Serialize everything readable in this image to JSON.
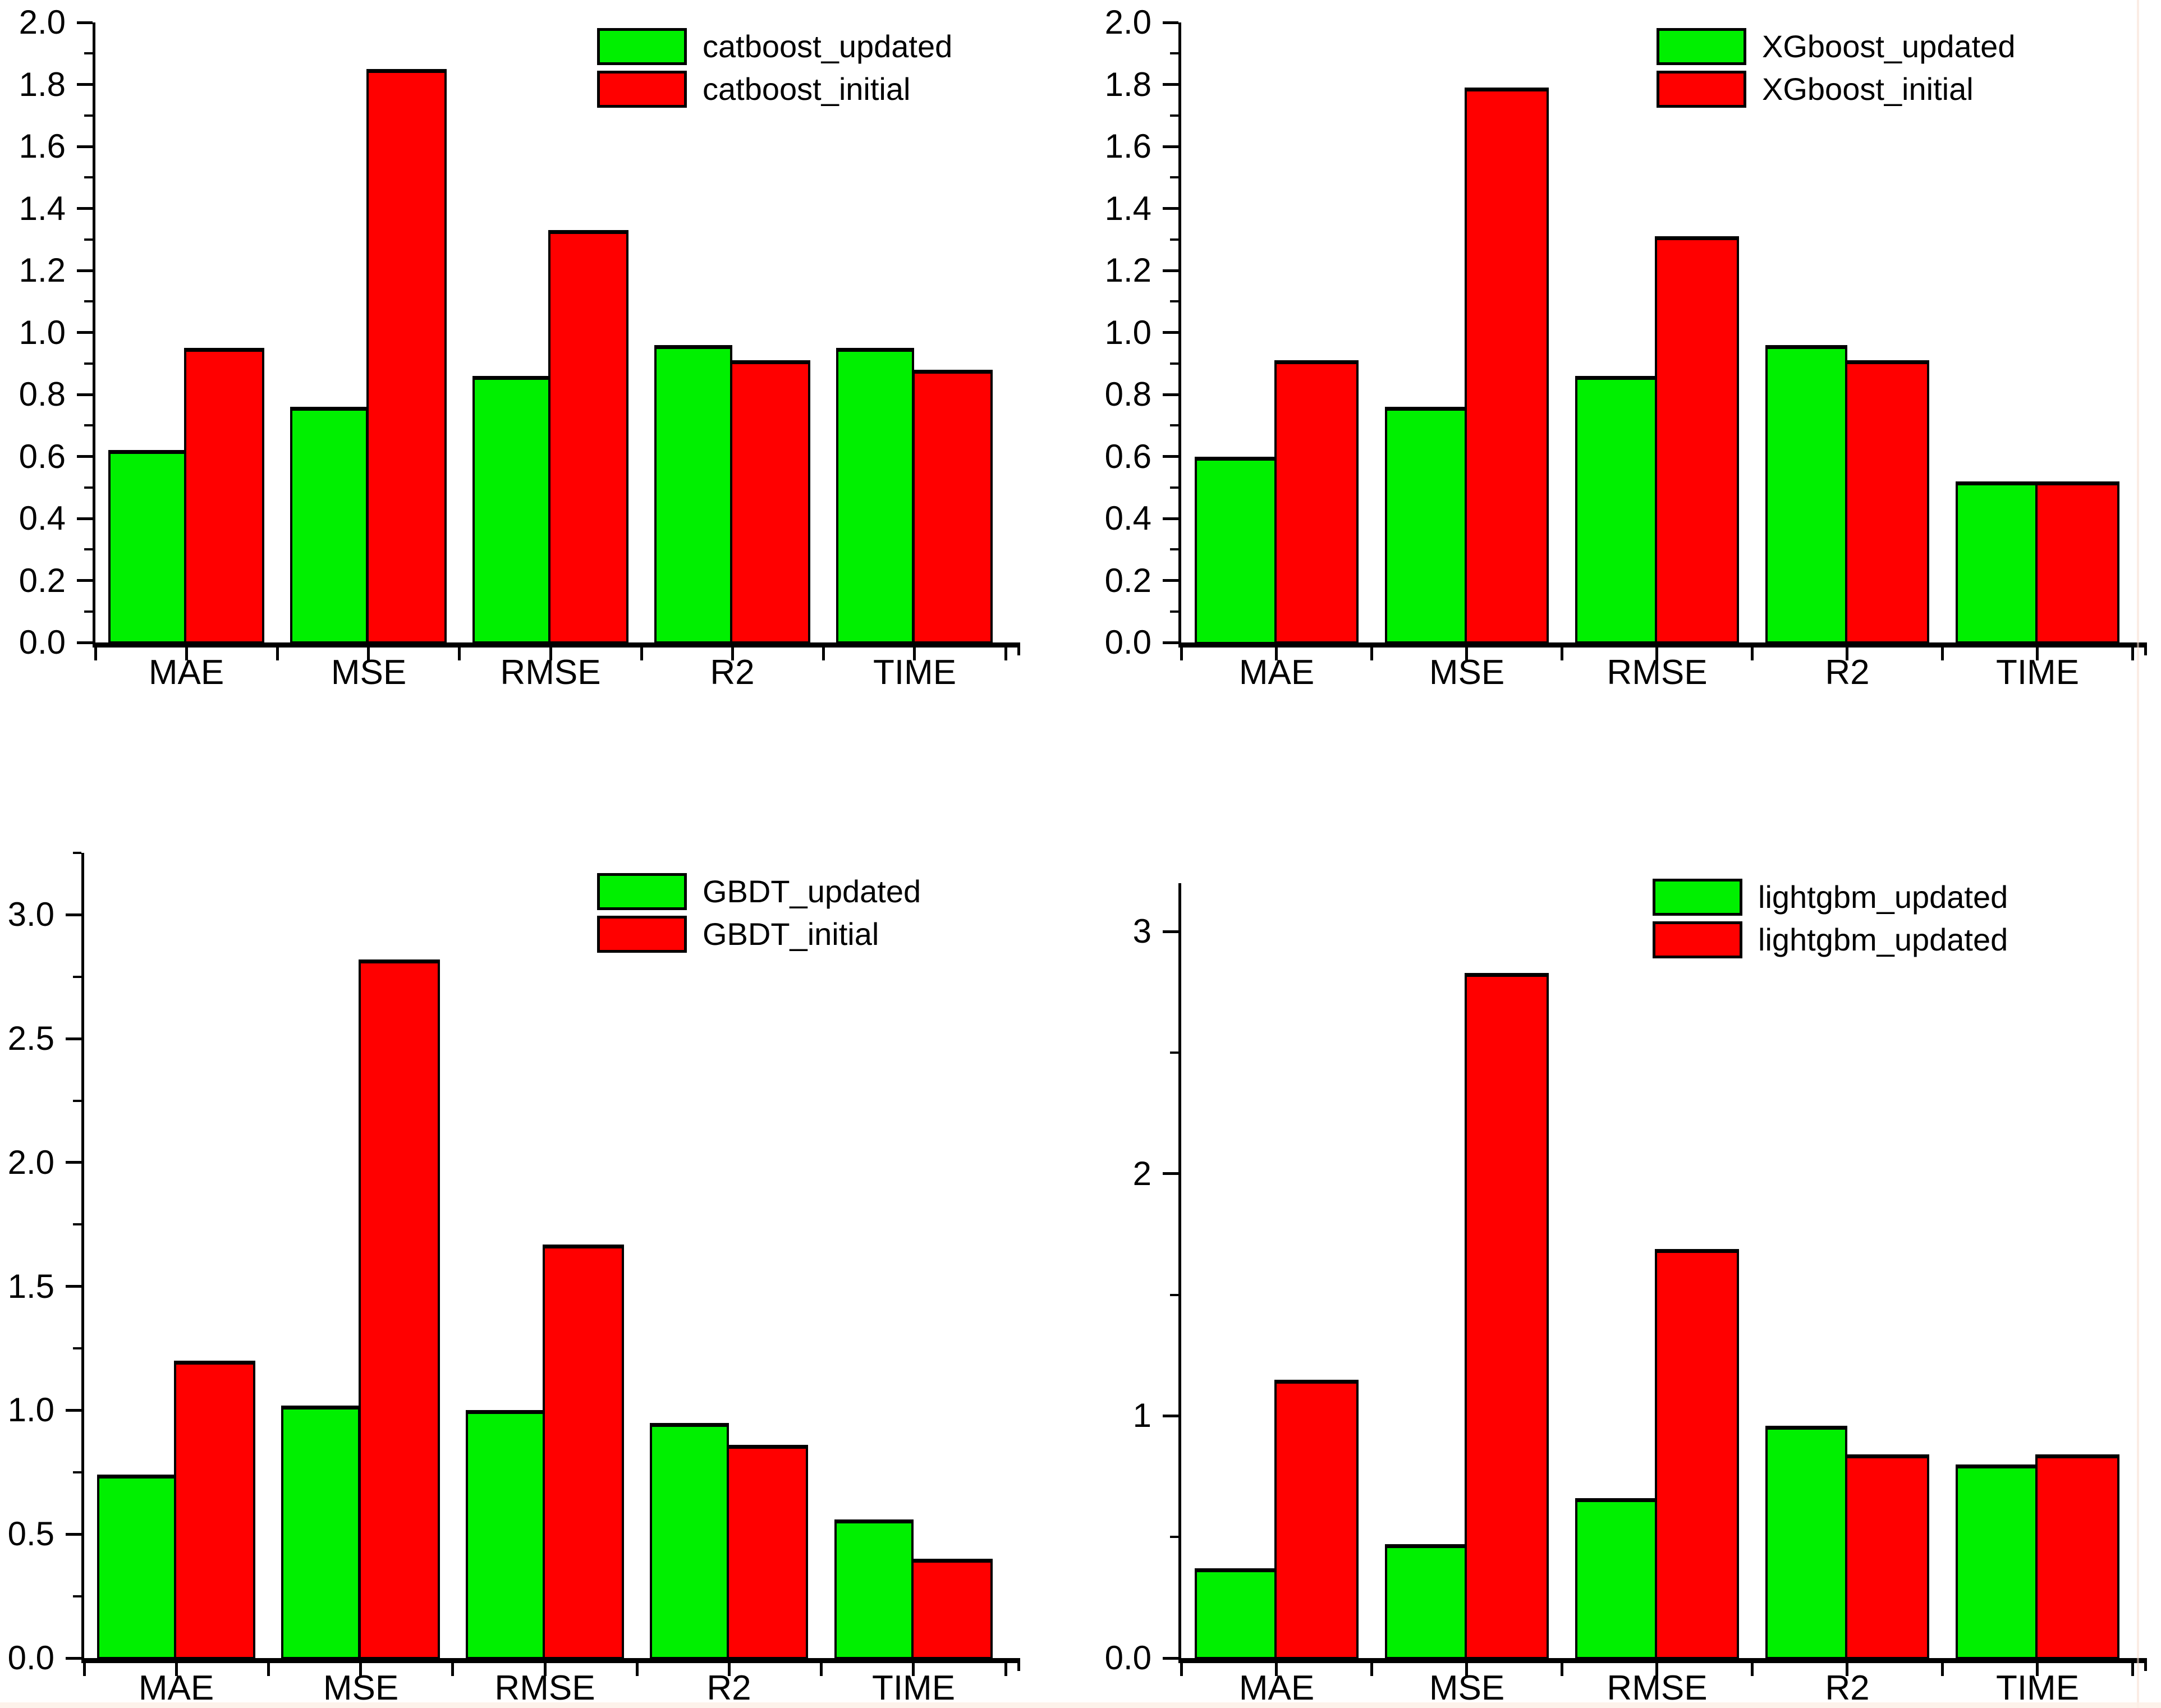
{
  "page": {
    "background": "#ffffff"
  },
  "colors": {
    "updated": "#00f000",
    "initial": "#ff0000",
    "axis": "#000000"
  },
  "chart_data": [
    {
      "type": "bar",
      "title": "",
      "panel": "top-left",
      "categories": [
        "MAE",
        "MSE",
        "RMSE",
        "R2",
        "TIME"
      ],
      "series": [
        {
          "name": "catboost_updated",
          "color": "#00f000",
          "values": [
            0.62,
            0.76,
            0.86,
            0.96,
            0.95
          ]
        },
        {
          "name": "catboost_initial",
          "color": "#ff0000",
          "values": [
            0.95,
            1.85,
            1.33,
            0.91,
            0.88
          ]
        }
      ],
      "xlabel": "",
      "ylabel": "",
      "ylim": [
        0,
        2.0
      ],
      "yticks": [
        {
          "v": 0.0,
          "label": "0.0"
        },
        {
          "v": 0.2,
          "label": "0.2"
        },
        {
          "v": 0.4,
          "label": "0.4"
        },
        {
          "v": 0.6,
          "label": "0.6"
        },
        {
          "v": 0.8,
          "label": "0.8"
        },
        {
          "v": 1.0,
          "label": "1.0"
        },
        {
          "v": 1.2,
          "label": "1.2"
        },
        {
          "v": 1.4,
          "label": "1.4"
        },
        {
          "v": 1.6,
          "label": "1.6"
        },
        {
          "v": 1.8,
          "label": "1.8"
        },
        {
          "v": 2.0,
          "label": "2.0"
        }
      ],
      "yminor": [
        0.1,
        0.3,
        0.5,
        0.7,
        0.9,
        1.1,
        1.3,
        1.5,
        1.7,
        1.9
      ],
      "grid": false,
      "legend_position": "inside-top-center"
    },
    {
      "type": "bar",
      "title": "",
      "panel": "top-right",
      "categories": [
        "MAE",
        "MSE",
        "RMSE",
        "R2",
        "TIME"
      ],
      "series": [
        {
          "name": "XGboost_updated",
          "color": "#00f000",
          "values": [
            0.6,
            0.76,
            0.86,
            0.96,
            0.52
          ]
        },
        {
          "name": "XGboost_initial",
          "color": "#ff0000",
          "values": [
            0.91,
            1.79,
            1.31,
            0.91,
            0.52
          ]
        }
      ],
      "xlabel": "",
      "ylabel": "",
      "ylim": [
        0,
        2.0
      ],
      "yticks": [
        {
          "v": 0.0,
          "label": "0.0"
        },
        {
          "v": 0.2,
          "label": "0.2"
        },
        {
          "v": 0.4,
          "label": "0.4"
        },
        {
          "v": 0.6,
          "label": "0.6"
        },
        {
          "v": 0.8,
          "label": "0.8"
        },
        {
          "v": 1.0,
          "label": "1.0"
        },
        {
          "v": 1.2,
          "label": "1.2"
        },
        {
          "v": 1.4,
          "label": "1.4"
        },
        {
          "v": 1.6,
          "label": "1.6"
        },
        {
          "v": 1.8,
          "label": "1.8"
        },
        {
          "v": 2.0,
          "label": "2.0"
        }
      ],
      "yminor": [
        0.1,
        0.3,
        0.5,
        0.7,
        0.9,
        1.1,
        1.3,
        1.5,
        1.7,
        1.9
      ],
      "grid": false,
      "legend_position": "inside-top-center"
    },
    {
      "type": "bar",
      "title": "",
      "panel": "bottom-left",
      "categories": [
        "MAE",
        "MSE",
        "RMSE",
        "R2",
        "TIME"
      ],
      "series": [
        {
          "name": "GBDT_updated",
          "color": "#00f000",
          "values": [
            0.74,
            1.02,
            1.0,
            0.95,
            0.56
          ]
        },
        {
          "name": "GBDT_initial",
          "color": "#ff0000",
          "values": [
            1.2,
            2.82,
            1.67,
            0.86,
            0.4
          ]
        }
      ],
      "xlabel": "",
      "ylabel": "",
      "ylim": [
        0,
        3.25
      ],
      "yticks": [
        {
          "v": 0.0,
          "label": "0.0"
        },
        {
          "v": 0.5,
          "label": "0.5"
        },
        {
          "v": 1.0,
          "label": "1.0"
        },
        {
          "v": 1.5,
          "label": "1.5"
        },
        {
          "v": 2.0,
          "label": "2.0"
        },
        {
          "v": 2.5,
          "label": "2.5"
        },
        {
          "v": 3.0,
          "label": "3.0"
        }
      ],
      "yminor": [
        0.25,
        0.75,
        1.25,
        1.75,
        2.25,
        2.75,
        3.25
      ],
      "grid": false,
      "legend_position": "inside-top-center"
    },
    {
      "type": "bar",
      "title": "",
      "panel": "bottom-right",
      "categories": [
        "MAE",
        "MSE",
        "RMSE",
        "R2",
        "TIME"
      ],
      "series": [
        {
          "name": "lightgbm_updated",
          "color": "#00f000",
          "values": [
            0.37,
            0.47,
            0.66,
            0.96,
            0.8
          ]
        },
        {
          "name": "lightgbm_updated",
          "color": "#ff0000",
          "values": [
            1.15,
            2.83,
            1.69,
            0.84,
            0.84
          ]
        }
      ],
      "xlabel": "",
      "ylabel": "",
      "ylim": [
        0,
        3.2
      ],
      "yticks": [
        {
          "v": 0.0,
          "label": "0.0"
        },
        {
          "v": 1.0,
          "label": "1"
        },
        {
          "v": 2.0,
          "label": "2"
        },
        {
          "v": 3.0,
          "label": "3"
        }
      ],
      "yminor": [
        0.5,
        1.5,
        2.5
      ],
      "grid": false,
      "legend_position": "inside-top-center"
    }
  ]
}
